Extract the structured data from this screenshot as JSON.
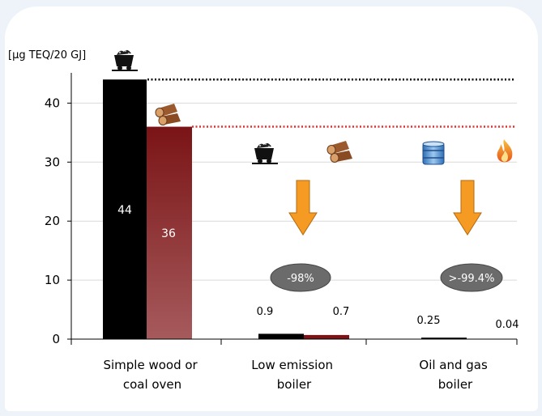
{
  "chart_data": {
    "type": "bar",
    "ylabel": "[µg TEQ/20 GJ]",
    "ylim": [
      0,
      45
    ],
    "yticks": [
      0,
      10,
      20,
      30,
      40
    ],
    "grid": true,
    "categories": [
      "Simple wood or coal oven",
      "Low emission boiler",
      "Oil and gas boiler"
    ],
    "category_lines": [
      [
        "Simple wood or",
        "coal oven"
      ],
      [
        "Low emission",
        "boiler"
      ],
      [
        "Oil and gas",
        "boiler"
      ]
    ],
    "series": [
      {
        "fuel": "coal",
        "values": [
          44,
          0.9,
          null
        ]
      },
      {
        "fuel": "wood",
        "values": [
          36,
          0.7,
          null
        ]
      },
      {
        "fuel": "oil",
        "values": [
          null,
          null,
          0.25
        ]
      },
      {
        "fuel": "gas",
        "values": [
          null,
          null,
          0.04
        ]
      }
    ],
    "data_labels": [
      "44",
      "36",
      "0.9",
      "0.7",
      "0.25",
      "0.04"
    ],
    "reference_lines": [
      {
        "value": 44,
        "color": "#000000"
      },
      {
        "value": 36,
        "color": "#e03030"
      }
    ],
    "annotations": [
      "-98%",
      ">-99.4%"
    ],
    "colors": {
      "coal": "#000000",
      "wood": "#7a1416",
      "wood_light": "#9a4a4c",
      "arrow": "#f59a23",
      "badge": "#6b6b6b"
    },
    "icons": [
      "coal-cart-icon",
      "wood-logs-icon",
      "oil-barrel-icon",
      "gas-flame-icon"
    ]
  }
}
